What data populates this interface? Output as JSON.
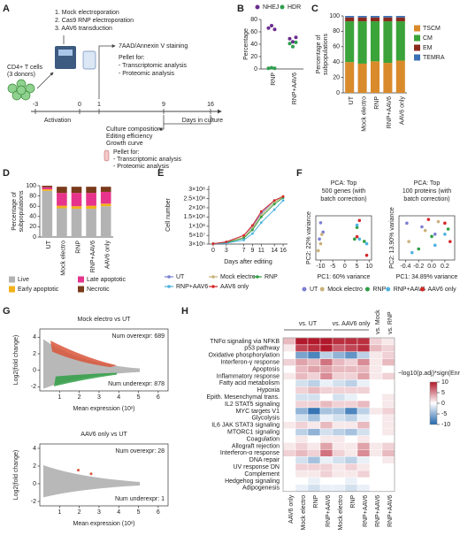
{
  "panel_labels": [
    "A",
    "B",
    "C",
    "D",
    "E",
    "F",
    "G",
    "H"
  ],
  "schematic": {
    "steps": [
      "1. Mock electroporation",
      "2. Cas9 RNP electroporation",
      "3. AAV6 transduction"
    ],
    "cells": [
      "CD4+ T cells",
      "(3 donors)"
    ],
    "activation": "Activation",
    "days": [
      -3,
      0,
      1,
      9,
      16
    ],
    "days_label": "Days in culture",
    "top_note": [
      "7AAD/Annexin V staining",
      "Pellet for:",
      "- Transcriptomic analysis",
      "- Proteomic analysis"
    ],
    "bottom_note": [
      "Culture composition",
      "Editing efficiency",
      "Growth curve",
      "Pellet for:",
      "- Transcriptomic analysis",
      "- Proteomic analysis"
    ]
  },
  "chart_data": [
    {
      "type": "dot",
      "ylabel": "Percentage",
      "categories": [
        "RNP",
        "RNP+AAV6"
      ],
      "ylim": [
        0,
        80
      ],
      "yticks": [
        0,
        20,
        40,
        60,
        80
      ],
      "legend": "top",
      "series": [
        {
          "name": "NHEJ",
          "color": "#6a2c8e",
          "values": [
            [
              66,
              70,
              64
            ],
            [
              49,
              44,
              51
            ]
          ]
        },
        {
          "name": "HDR",
          "color": "#2e9e4f",
          "values": [
            [
              1,
              2,
              1
            ],
            [
              41,
              36,
              43
            ]
          ]
        }
      ]
    },
    {
      "type": "stacked_bar",
      "ylabel": [
        "Percentage of",
        "subpopulations"
      ],
      "categories": [
        "UT",
        "Mock electro",
        "RNP",
        "RNP+AAV6",
        "AAV6 only"
      ],
      "ylim": [
        0,
        100
      ],
      "yticks": [
        0,
        20,
        40,
        60,
        80,
        100
      ],
      "legend": "right",
      "series": [
        {
          "name": "TSCM",
          "color": "#d98b2b",
          "values": [
            40,
            38,
            41,
            39,
            42
          ]
        },
        {
          "name": "CM",
          "color": "#3aa33a",
          "values": [
            53,
            55,
            52,
            54,
            51
          ]
        },
        {
          "name": "EM",
          "color": "#8b2b1e",
          "values": [
            5,
            5,
            5,
            5,
            5
          ]
        },
        {
          "name": "TEMRA",
          "color": "#3b6fb6",
          "values": [
            2,
            2,
            2,
            2,
            2
          ]
        }
      ]
    },
    {
      "type": "stacked_bar",
      "ylabel": [
        "Percentage of",
        "subpopulations"
      ],
      "categories": [
        "UT",
        "Mock electro",
        "RNP",
        "RNP+AAV6",
        "AAV6 only"
      ],
      "ylim": [
        0,
        100
      ],
      "yticks": [
        0,
        20,
        40,
        60,
        80,
        100
      ],
      "legend": "bottom",
      "series": [
        {
          "name": "Live",
          "color": "#b3b3b3",
          "values": [
            90,
            56,
            55,
            55,
            60
          ]
        },
        {
          "name": "Early apoptotic",
          "color": "#f2b21a",
          "values": [
            3,
            5,
            5,
            6,
            5
          ]
        },
        {
          "name": "Late apoptotic",
          "color": "#e6348c",
          "values": [
            4,
            25,
            26,
            25,
            23
          ]
        },
        {
          "name": "Necrotic",
          "color": "#7a3b1a",
          "values": [
            3,
            12,
            12,
            12,
            10
          ]
        }
      ]
    },
    {
      "type": "line",
      "xlabel": "Days after editing",
      "ylabel": "Cell number",
      "x": [
        0,
        3,
        7,
        9,
        11,
        14,
        16
      ],
      "xlim": [
        -1,
        17
      ],
      "xticks": [
        0,
        3,
        7,
        9,
        11,
        14,
        16
      ],
      "ylim": [
        3000000,
        320000000
      ],
      "yticks": [
        {
          "value": 3000000,
          "label": "3×10⁶"
        },
        {
          "value": 50000000,
          "label": "5×10⁷"
        },
        {
          "value": 100000000,
          "label": "1×10⁸"
        },
        {
          "value": 150000000,
          "label": "1.5×10⁸"
        },
        {
          "value": 200000000,
          "label": "2×10⁸"
        },
        {
          "value": 250000000,
          "label": "2.5×10⁸"
        },
        {
          "value": 300000000,
          "label": "3×10⁸"
        }
      ],
      "legend": "bottom",
      "series": [
        {
          "name": "UT",
          "color": "#7b7fd1",
          "values": [
            5000000,
            15000000,
            50000000,
            100000000,
            170000000,
            240000000,
            260000000
          ]
        },
        {
          "name": "Mock electro",
          "color": "#c9b27a",
          "values": [
            5000000,
            12000000,
            40000000,
            90000000,
            160000000,
            230000000,
            260000000
          ]
        },
        {
          "name": "RNP",
          "color": "#2f9e44",
          "values": [
            5000000,
            10000000,
            35000000,
            80000000,
            150000000,
            220000000,
            255000000
          ]
        },
        {
          "name": "RNP+AAV6",
          "color": "#4fb3e0",
          "values": [
            5000000,
            8000000,
            25000000,
            60000000,
            120000000,
            190000000,
            240000000
          ]
        },
        {
          "name": "AAV6 only",
          "color": "#d62828",
          "values": [
            5000000,
            15000000,
            50000000,
            105000000,
            180000000,
            240000000,
            262000000
          ]
        }
      ]
    },
    {
      "type": "scatter",
      "title": [
        "PCA: Top",
        "500 genes (with",
        "batch correction)"
      ],
      "xlabel": "PC1: 60% variance",
      "ylabel": "PC2: 22% variance",
      "xlim": [
        -12,
        11
      ],
      "xticks": [
        -10,
        -5,
        0,
        5,
        10
      ],
      "ylim": [
        -9,
        10
      ],
      "legend": "bottom",
      "series": [
        {
          "name": "UT",
          "color": "#7b7fd1",
          "x": [
            -10,
            -9,
            -10.5
          ],
          "y": [
            7,
            3,
            0
          ]
        },
        {
          "name": "Mock electro",
          "color": "#c9b27a",
          "x": [
            -9.5,
            -10,
            -11
          ],
          "y": [
            2,
            -2,
            -5
          ]
        },
        {
          "name": "RNP",
          "color": "#2f9e44",
          "x": [
            5,
            4,
            8
          ],
          "y": [
            5,
            0,
            -1
          ]
        },
        {
          "name": "RNP+AAV6",
          "color": "#4fb3e0",
          "x": [
            5,
            9,
            6
          ],
          "y": [
            6,
            -2,
            0
          ]
        },
        {
          "name": "AAV6 only",
          "color": "#d62828",
          "x": [
            6,
            5,
            9
          ],
          "y": [
            8,
            1,
            -7
          ]
        }
      ]
    },
    {
      "type": "scatter",
      "title": [
        "PCA: Top",
        "100 proteins (with",
        "batch correction)"
      ],
      "xlabel": "PC1: 34.89% variance",
      "ylabel": "PC2: 13.90% variance",
      "xlim": [
        -0.5,
        0.35
      ],
      "xticks": [
        -0.4,
        -0.2,
        {
          "value": 0,
          "label": "0.0"
        },
        0.2
      ],
      "ylim": [
        -0.3,
        0.3
      ],
      "series": [
        {
          "color": "#7b7fd1",
          "x": [
            -0.38,
            -0.15,
            0.05
          ],
          "y": [
            0.2,
            0.15,
            0.05
          ]
        },
        {
          "color": "#c9b27a",
          "x": [
            -0.35,
            -0.1,
            0.1
          ],
          "y": [
            -0.05,
            0.1,
            0.22
          ]
        },
        {
          "color": "#2f9e44",
          "x": [
            -0.2,
            0.0,
            0.25
          ],
          "y": [
            -0.15,
            0.02,
            0.12
          ]
        },
        {
          "color": "#4fb3e0",
          "x": [
            -0.3,
            0.05,
            0.2
          ],
          "y": [
            -0.2,
            -0.1,
            0.05
          ]
        },
        {
          "color": "#d62828",
          "x": [
            -0.05,
            0.2,
            0.28
          ],
          "y": [
            0.25,
            0.2,
            -0.05
          ]
        }
      ]
    },
    {
      "type": "ma",
      "title": "Mock electro vs UT",
      "xlabel": "Mean expression (10ˣ)",
      "ylabel": "Log2(fold change)",
      "xlim": [
        0,
        6.5
      ],
      "xticks": [
        1,
        2,
        3,
        4,
        5,
        6
      ],
      "ylim": [
        -2.5,
        5
      ],
      "yticks": [
        -2,
        0,
        2,
        4
      ],
      "over": "Num overexpr: 689",
      "under": "Num underexpr: 878",
      "over_color": "#d9553a",
      "under_color": "#2f9e44"
    },
    {
      "type": "ma",
      "title": "AAV6 only vs UT",
      "xlabel": "Mean expression (10ˣ)",
      "ylabel": "Log2(fold change)",
      "xlim": [
        0,
        6.5
      ],
      "xticks": [
        1,
        2,
        3,
        4,
        5,
        6
      ],
      "ylim": [
        -2.5,
        4.5
      ],
      "yticks": [
        -2,
        0,
        2,
        4
      ],
      "over": "Num overexpr: 28",
      "under": "Num underexpr: 1",
      "over_color": "#d9553a",
      "under_color": "#2f9e44"
    },
    {
      "type": "heatmap",
      "groups": [
        {
          "label": "vs. UT",
          "columns": [
            "AAV6 only",
            "Mock electro",
            "RNP",
            "RNP+AAV6"
          ]
        },
        {
          "label": "vs. AAV6 only",
          "columns": [
            "Mock electro",
            "RNP",
            "RNP+AAV6"
          ]
        },
        {
          "label": "vs. Mock",
          "columns": [
            "RNP+AAV6"
          ]
        },
        {
          "label": "vs. RNP",
          "columns": [
            "RNP+AAV6"
          ]
        }
      ],
      "rows": [
        {
          "label": "TNFα signaling via NFKB",
          "values": [
            3,
            10,
            10,
            10,
            9,
            9,
            9,
            2,
            1
          ]
        },
        {
          "label": "p53 pathway",
          "values": [
            1,
            8,
            9,
            10,
            7,
            8,
            9,
            3,
            2
          ]
        },
        {
          "label": "Oxidative phosphorylation",
          "values": [
            0,
            -6,
            -8,
            -3,
            -5,
            -7,
            -3,
            1,
            2
          ]
        },
        {
          "label": "Interferon-γ response",
          "values": [
            2,
            4,
            3,
            6,
            3,
            2,
            5,
            1,
            3
          ]
        },
        {
          "label": "Apoptosis",
          "values": [
            0,
            3,
            4,
            4,
            3,
            3,
            3,
            1,
            0
          ]
        },
        {
          "label": "Inflammatory response",
          "values": [
            1,
            3,
            2,
            5,
            2,
            2,
            4,
            1,
            2
          ]
        },
        {
          "label": "Fatty acid metabolism",
          "values": [
            0,
            -2,
            -3,
            -1,
            -2,
            -3,
            -1,
            0,
            0
          ]
        },
        {
          "label": "Hypoxia",
          "values": [
            0,
            2,
            3,
            2,
            2,
            2,
            2,
            0,
            0
          ]
        },
        {
          "label": "Epith. Mesenchymal trans.",
          "values": [
            0,
            -2,
            -2,
            0,
            -2,
            -1,
            0,
            0,
            1
          ]
        },
        {
          "label": "IL2 STAT5 signaling",
          "values": [
            0,
            2,
            2,
            3,
            2,
            2,
            3,
            0,
            1
          ]
        },
        {
          "label": "MYC targets V1",
          "values": [
            0,
            -5,
            -9,
            -4,
            -4,
            -8,
            -3,
            1,
            2
          ]
        },
        {
          "label": "Glycolysis",
          "values": [
            0,
            -2,
            -4,
            -1,
            -2,
            -3,
            -1,
            0,
            1
          ]
        },
        {
          "label": "IL6 JAK STAT3 signaling",
          "values": [
            1,
            2,
            1,
            3,
            1,
            1,
            3,
            0,
            1
          ]
        },
        {
          "label": "MTORC1 signaling",
          "values": [
            0,
            -3,
            -5,
            -2,
            -3,
            -4,
            -2,
            0,
            1
          ]
        },
        {
          "label": "Coagulation",
          "values": [
            0,
            1,
            0,
            1,
            1,
            0,
            1,
            0,
            0
          ]
        },
        {
          "label": "Allograft rejection",
          "values": [
            1,
            2,
            1,
            4,
            1,
            1,
            4,
            1,
            2
          ]
        },
        {
          "label": "Interferon-α response",
          "values": [
            2,
            3,
            2,
            6,
            2,
            1,
            5,
            1,
            3
          ]
        },
        {
          "label": "DNA repair",
          "values": [
            0,
            -2,
            -4,
            -1,
            -2,
            -3,
            -1,
            0,
            1
          ]
        },
        {
          "label": "UV response DN",
          "values": [
            0,
            2,
            2,
            2,
            1,
            2,
            1,
            0,
            0
          ]
        },
        {
          "label": "Complement",
          "values": [
            0,
            1,
            1,
            2,
            1,
            1,
            2,
            0,
            0
          ]
        },
        {
          "label": "Hedgehog signaling",
          "values": [
            0,
            0,
            -1,
            0,
            0,
            -1,
            0,
            0,
            0
          ]
        },
        {
          "label": "Adipogenesis",
          "values": [
            0,
            -1,
            -2,
            -1,
            -1,
            -2,
            -1,
            0,
            0
          ]
        }
      ],
      "colorbar": {
        "title": "−log10(p.adj)*sign(Enr)",
        "lim": [
          -10,
          10
        ],
        "ticks": [
          10,
          5,
          0,
          -5,
          -10
        ]
      }
    }
  ]
}
